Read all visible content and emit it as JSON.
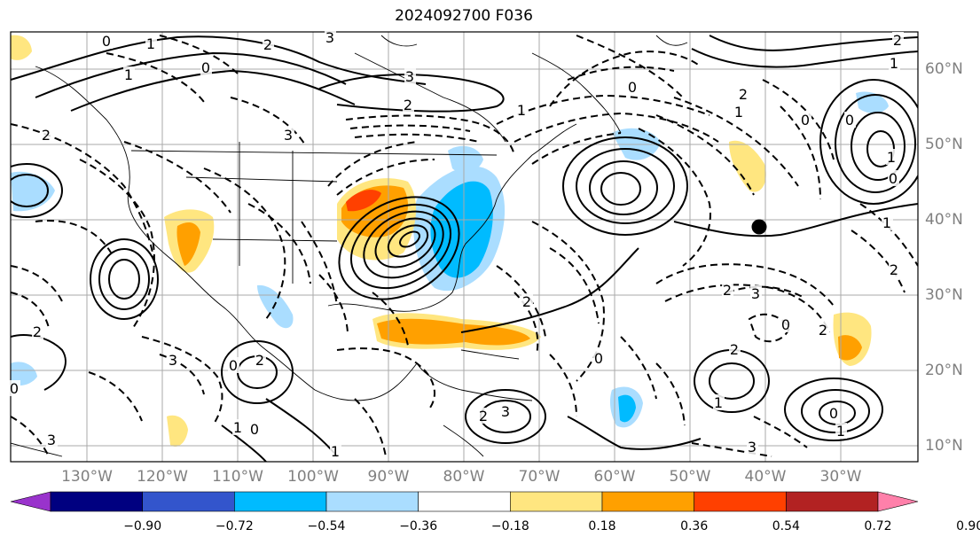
{
  "title": "2024092700 F036",
  "map": {
    "lon_labels": [
      "130°W",
      "120°W",
      "110°W",
      "100°W",
      "90°W",
      "80°W",
      "70°W",
      "60°W",
      "50°W",
      "40°W",
      "30°W"
    ],
    "lat_labels": [
      "60°N",
      "50°N",
      "40°N",
      "30°N",
      "20°N",
      "10°N"
    ],
    "marker": {
      "lon": -39,
      "lat": 39
    }
  },
  "colorbar": {
    "labels": [
      "−0.90",
      "−0.72",
      "−0.54",
      "−0.36",
      "−0.18",
      "0.18",
      "0.36",
      "0.54",
      "0.72",
      "0.90"
    ],
    "colors": [
      "#9933cc",
      "#000080",
      "#3355cc",
      "#00bbff",
      "#aaddff",
      "#ffffff",
      "#ffe680",
      "#ffa000",
      "#ff4000",
      "#b22222",
      "#ff80aa"
    ]
  },
  "contour_labels": [
    "0",
    "1",
    "3",
    "3",
    "2",
    "0",
    "1",
    "2",
    "3",
    "2",
    "0",
    "2",
    "3",
    "2",
    "0",
    "0",
    "1",
    "2",
    "3",
    "2",
    "1",
    "0",
    "1",
    "2",
    "3",
    "3",
    "2",
    "0",
    "2",
    "0",
    "1",
    "1",
    "0",
    "1",
    "2",
    "2",
    "1",
    "0",
    "0",
    "1",
    "0",
    "1",
    "2",
    "3"
  ]
}
